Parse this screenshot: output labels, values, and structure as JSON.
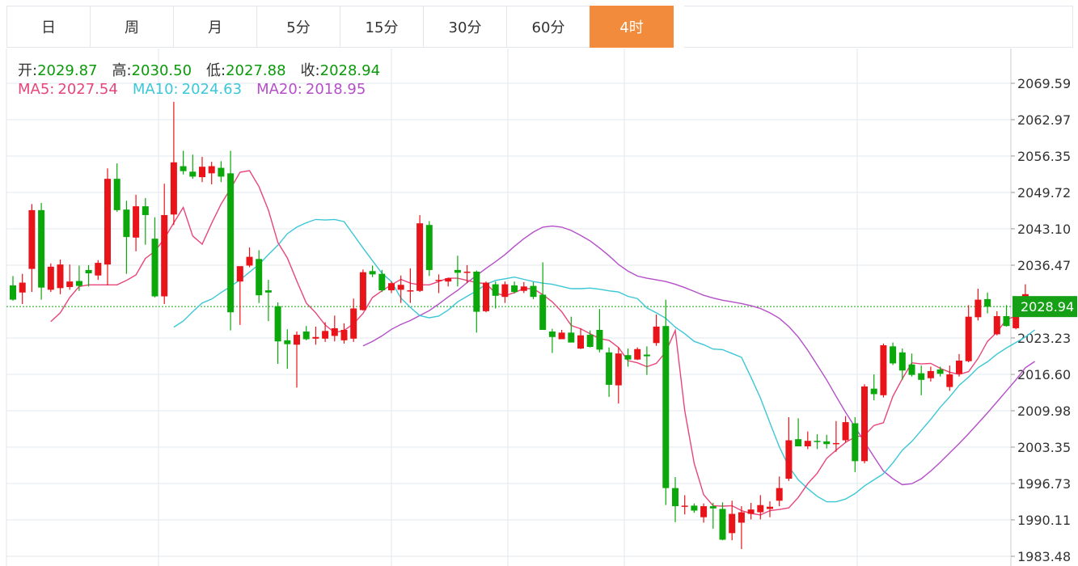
{
  "tabs": [
    "日",
    "周",
    "月",
    "5分",
    "15分",
    "30分",
    "60分",
    "4时"
  ],
  "active_tab": "4时",
  "ohlc": {
    "open_label": "开:",
    "open": "2029.87",
    "high_label": "高:",
    "high": "2030.50",
    "low_label": "低:",
    "low": "2027.88",
    "close_label": "收:",
    "close": "2028.94"
  },
  "ma": {
    "ma5_label": "MA5:",
    "ma5": "2027.54",
    "ma10_label": "MA10:",
    "ma10": "2024.63",
    "ma20_label": "MA20:",
    "ma20": "2018.95"
  },
  "colors": {
    "up": "#e8141a",
    "down": "#0aa80a",
    "ma5": "#e8457a",
    "ma10": "#3cc7d6",
    "ma20": "#b44fc8",
    "active_tab": "#f28c3c",
    "price_label_bg": "#16a016"
  },
  "chart_data": {
    "type": "candlestick",
    "y_ticks": [
      "2069.59",
      "2062.97",
      "2056.35",
      "2049.72",
      "2043.10",
      "2036.47",
      "2023.23",
      "2016.60",
      "2009.98",
      "2003.35",
      "1996.73",
      "1990.11",
      "1983.48"
    ],
    "ylim": [
      1983.48,
      2069.59
    ],
    "last_price_label": "2028.94",
    "last_price": 2028.94,
    "candles": [
      [
        2032.8,
        2034.5,
        2030.0,
        2030.2
      ],
      [
        2031.5,
        2034.9,
        2029.4,
        2033.3
      ],
      [
        2035.8,
        2047.6,
        2031.6,
        2046.5
      ],
      [
        2046.5,
        2047.8,
        2030.2,
        2032.4
      ],
      [
        2032.0,
        2036.8,
        2031.6,
        2036.2
      ],
      [
        2032.3,
        2037.5,
        2031.2,
        2036.6
      ],
      [
        2032.5,
        2036.6,
        2032.0,
        2033.5
      ],
      [
        2033.6,
        2036.4,
        2031.8,
        2032.7
      ],
      [
        2035.6,
        2036.5,
        2032.6,
        2035.0
      ],
      [
        2034.6,
        2037.4,
        2033.8,
        2036.9
      ],
      [
        2036.6,
        2054.1,
        2032.8,
        2052.2
      ],
      [
        2052.2,
        2055.0,
        2046.2,
        2046.5
      ],
      [
        2046.6,
        2048.2,
        2034.9,
        2041.6
      ],
      [
        2041.5,
        2049.3,
        2039.0,
        2047.2
      ],
      [
        2047.2,
        2048.7,
        2040.2,
        2045.6
      ],
      [
        2041.3,
        2045.2,
        2030.6,
        2030.8
      ],
      [
        2030.8,
        2051.3,
        2029.4,
        2045.6
      ],
      [
        2045.7,
        2066.2,
        2043.8,
        2055.2
      ],
      [
        2054.5,
        2057.3,
        2053.0,
        2053.6
      ],
      [
        2053.5,
        2056.6,
        2052.2,
        2052.6
      ],
      [
        2052.5,
        2056.2,
        2051.6,
        2054.4
      ],
      [
        2053.2,
        2055.3,
        2051.2,
        2054.5
      ],
      [
        2054.2,
        2055.4,
        2051.6,
        2052.6
      ],
      [
        2053.2,
        2057.3,
        2024.6,
        2027.9
      ],
      [
        2033.5,
        2036.2,
        2025.6,
        2036.3
      ],
      [
        2036.4,
        2039.7,
        2036.1,
        2038.0
      ],
      [
        2037.6,
        2039.2,
        2029.6,
        2031.0
      ],
      [
        2031.9,
        2033.8,
        2026.3,
        2031.5
      ],
      [
        2029.0,
        2029.7,
        2018.5,
        2022.6
      ],
      [
        2022.8,
        2024.8,
        2017.6,
        2022.1
      ],
      [
        2022.0,
        2024.4,
        2014.2,
        2023.8
      ],
      [
        2024.4,
        2025.4,
        2022.8,
        2023.0
      ],
      [
        2023.1,
        2025.3,
        2022.0,
        2023.4
      ],
      [
        2023.1,
        2026.1,
        2022.5,
        2024.5
      ],
      [
        2023.6,
        2027.3,
        2022.6,
        2025.0
      ],
      [
        2022.8,
        2025.9,
        2022.2,
        2024.7
      ],
      [
        2023.1,
        2030.4,
        2022.5,
        2028.6
      ],
      [
        2028.3,
        2035.7,
        2028.2,
        2035.2
      ],
      [
        2035.4,
        2036.4,
        2034.3,
        2034.8
      ],
      [
        2034.9,
        2035.6,
        2031.6,
        2031.9
      ],
      [
        2031.9,
        2033.5,
        2031.4,
        2033.2
      ],
      [
        2032.0,
        2034.6,
        2029.6,
        2032.9
      ],
      [
        2031.8,
        2035.9,
        2029.6,
        2031.9
      ],
      [
        2031.8,
        2045.6,
        2031.6,
        2044.1
      ],
      [
        2043.8,
        2044.5,
        2034.5,
        2035.6
      ],
      [
        2033.8,
        2034.8,
        2031.4,
        2033.8
      ],
      [
        2033.5,
        2034.2,
        2032.6,
        2034.1
      ],
      [
        2035.6,
        2038.2,
        2032.6,
        2035.1
      ],
      [
        2035.1,
        2036.5,
        2033.2,
        2035.3
      ],
      [
        2035.3,
        2035.5,
        2024.2,
        2028.0
      ],
      [
        2028.1,
        2033.5,
        2027.9,
        2033.3
      ],
      [
        2033.0,
        2033.5,
        2028.6,
        2030.9
      ],
      [
        2030.7,
        2033.5,
        2029.6,
        2033.0
      ],
      [
        2032.8,
        2033.5,
        2031.3,
        2031.6
      ],
      [
        2031.8,
        2033.4,
        2031.4,
        2032.6
      ],
      [
        2032.7,
        2033.4,
        2030.3,
        2030.7
      ],
      [
        2031.1,
        2037.0,
        2024.7,
        2024.7
      ],
      [
        2024.4,
        2024.9,
        2020.5,
        2023.4
      ],
      [
        2023.0,
        2024.7,
        2023.0,
        2024.2
      ],
      [
        2024.2,
        2027.1,
        2022.4,
        2022.4
      ],
      [
        2021.3,
        2025.0,
        2021.2,
        2023.7
      ],
      [
        2023.8,
        2024.6,
        2021.5,
        2021.6
      ],
      [
        2024.7,
        2028.5,
        2020.6,
        2021.1
      ],
      [
        2020.6,
        2021.5,
        2012.5,
        2014.7
      ],
      [
        2014.6,
        2021.5,
        2011.3,
        2020.4
      ],
      [
        2020.1,
        2021.3,
        2018.0,
        2019.3
      ],
      [
        2019.3,
        2021.5,
        2019.2,
        2021.2
      ],
      [
        2020.2,
        2021.7,
        2016.5,
        2019.9
      ],
      [
        2022.3,
        2027.5,
        2021.8,
        2025.3
      ],
      [
        2025.4,
        2030.2,
        1992.8,
        1995.9
      ],
      [
        1995.9,
        1997.9,
        1989.7,
        1992.6
      ],
      [
        1992.6,
        1994.6,
        1991.1,
        1992.7
      ],
      [
        1992.7,
        1993.1,
        1991.4,
        1991.8
      ],
      [
        1990.6,
        1993.1,
        1989.6,
        1992.6
      ],
      [
        1992.6,
        1993.2,
        1988.5,
        1992.2
      ],
      [
        1992.1,
        1993.3,
        1986.4,
        1986.5
      ],
      [
        1987.7,
        1993.6,
        1986.4,
        1991.2
      ],
      [
        1989.6,
        1992.6,
        1984.8,
        1991.5
      ],
      [
        1991.2,
        1993.2,
        1990.2,
        1992.0
      ],
      [
        1991.5,
        1994.6,
        1990.2,
        1992.8
      ],
      [
        1992.1,
        1993.5,
        1990.6,
        1992.5
      ],
      [
        1993.6,
        1998.0,
        1992.6,
        1995.9
      ],
      [
        1997.6,
        2008.8,
        1997.2,
        2004.6
      ],
      [
        2004.8,
        2008.6,
        2003.6,
        2003.5
      ],
      [
        2003.5,
        2006.2,
        2003.0,
        2004.5
      ],
      [
        2004.5,
        2005.7,
        2003.0,
        2004.3
      ],
      [
        2004.4,
        2005.6,
        2003.1,
        2003.9
      ],
      [
        2004.1,
        2008.1,
        2002.5,
        2004.1
      ],
      [
        2004.6,
        2009.0,
        2004.2,
        2007.9
      ],
      [
        2007.7,
        2008.8,
        1998.8,
        2000.8
      ],
      [
        2000.8,
        2014.8,
        2000.4,
        2014.4
      ],
      [
        2014.0,
        2016.6,
        2011.9,
        2013.0
      ],
      [
        2012.8,
        2022.2,
        2012.4,
        2021.9
      ],
      [
        2021.7,
        2022.4,
        2018.3,
        2018.6
      ],
      [
        2020.6,
        2021.3,
        2015.6,
        2017.3
      ],
      [
        2018.4,
        2020.4,
        2016.2,
        2016.5
      ],
      [
        2016.8,
        2018.2,
        2012.8,
        2015.6
      ],
      [
        2015.9,
        2018.0,
        2015.3,
        2017.2
      ],
      [
        2017.5,
        2018.0,
        2016.2,
        2016.7
      ],
      [
        2014.3,
        2018.2,
        2013.6,
        2016.6
      ],
      [
        2016.7,
        2020.3,
        2016.2,
        2019.1
      ],
      [
        2019.0,
        2029.2,
        2018.8,
        2027.1
      ],
      [
        2027.0,
        2032.2,
        2026.4,
        2030.2
      ],
      [
        2030.3,
        2031.5,
        2027.7,
        2028.9
      ],
      [
        2023.9,
        2028.1,
        2023.7,
        2027.2
      ],
      [
        2027.2,
        2029.2,
        2025.3,
        2025.4
      ],
      [
        2025.0,
        2029.8,
        2024.8,
        2029.1
      ],
      [
        2028.9,
        2033.0,
        2027.8,
        2031.2
      ],
      [
        2029.87,
        2030.5,
        2027.88,
        2028.94
      ]
    ],
    "ma5": [
      2026.2,
      2027.8,
      2030.6,
      2032.6,
      2032.9,
      2032.9,
      2032.9,
      2032.9,
      2033.7,
      2034.7,
      2037.7,
      2039.0,
      2041.3,
      2044.2,
      2047.0,
      2041.8,
      2040.3,
      2044.1,
      2047.6,
      2050.4,
      2053.4,
      2053.7,
      2050.8,
      2046.5,
      2040.6,
      2037.8,
      2033.6,
      2029.6,
      2027.8,
      2025.6,
      2024.2,
      2024.6,
      2025.8,
      2027.7,
      2030.6,
      2031.8,
      2032.9,
      2033.9,
      2033.2,
      2032.9,
      2032.9,
      2033.5,
      2034.1,
      2034.1,
      2033.7,
      2033.3,
      2033.1,
      2031.4,
      2030.9,
      2031.5,
      2032.2,
      2032.2,
      2031.1,
      2029.8,
      2028.0,
      2025.5,
      2024.9,
      2024.0,
      2023.1,
      2022.8,
      2021.5,
      2019.1,
      2018.7,
      2018.0,
      2018.6,
      2020.7,
      2024.6,
      2010.0,
      2000.4,
      1994.7,
      1992.7,
      1992.6,
      1992.7,
      1991.8,
      1991.3,
      1991.0,
      1991.8,
      1992.0,
      1992.3,
      1994.2,
      1996.7,
      1998.6,
      2001.3,
      2002.8,
      2004.2,
      2005.2,
      2005.5,
      2007.3,
      2007.8,
      2012.6,
      2015.8,
      2018.7,
      2018.5,
      2018.6,
      2017.7,
      2017.0,
      2016.6,
      2017.1,
      2019.5,
      2022.6,
      2024.3,
      2026.6,
      2027.2,
      2027.6,
      2027.5
    ],
    "ma10": [
      2025.2,
      2026.3,
      2028.0,
      2029.6,
      2030.3,
      2031.5,
      2032.6,
      2033.8,
      2035.2,
      2036.6,
      2038.4,
      2040.1,
      2042.2,
      2043.4,
      2044.2,
      2044.8,
      2044.7,
      2044.8,
      2044.4,
      2042.0,
      2039.6,
      2037.3,
      2035.0,
      2033.5,
      2030.5,
      2028.8,
      2027.3,
      2026.9,
      2027.2,
      2028.3,
      2029.8,
      2030.8,
      2031.8,
      2033.0,
      2033.7,
      2034.0,
      2034.3,
      2033.9,
      2033.5,
      2033.2,
      2033.0,
      2032.6,
      2032.2,
      2032.2,
      2032.3,
      2032.1,
      2031.8,
      2031.6,
      2030.8,
      2030.4,
      2028.7,
      2027.8,
      2026.8,
      2025.2,
      2024.0,
      2022.6,
      2022.0,
      2021.2,
      2021.1,
      2020.4,
      2019.7,
      2016.1,
      2012.3,
      2007.8,
      2003.4,
      1999.8,
      1997.4,
      1995.8,
      1994.4,
      1993.4,
      1993.4,
      1993.9,
      1994.9,
      1996.3,
      1997.4,
      1998.5,
      2000.5,
      2002.8,
      2004.4,
      2006.4,
      2008.4,
      2010.6,
      2012.5,
      2014.6,
      2016.1,
      2017.8,
      2018.9,
      2020.3,
      2021.4,
      2022.4,
      2023.4,
      2024.7
    ],
    "ma20": [
      2021.8,
      2022.6,
      2023.6,
      2024.8,
      2025.7,
      2026.4,
      2027.3,
      2028.2,
      2029.4,
      2030.7,
      2031.9,
      2033.3,
      2034.6,
      2035.9,
      2037.1,
      2038.4,
      2039.9,
      2041.3,
      2042.5,
      2043.4,
      2043.6,
      2043.4,
      2042.8,
      2041.9,
      2040.9,
      2039.6,
      2038.2,
      2036.6,
      2035.4,
      2034.5,
      2034.1,
      2033.8,
      2033.5,
      2033.0,
      2032.4,
      2031.7,
      2031.0,
      2030.5,
      2030.1,
      2029.8,
      2029.5,
      2029.1,
      2028.6,
      2027.8,
      2026.8,
      2025.3,
      2023.4,
      2021.0,
      2018.3,
      2015.6,
      2012.6,
      2009.7,
      2007.0,
      2004.3,
      2001.6,
      1999.0,
      1997.6,
      1996.5,
      1996.7,
      1997.6,
      1999.0,
      2000.6,
      2002.3,
      2004.0,
      2005.8,
      2007.7,
      2009.6,
      2011.6,
      2013.6,
      2015.6,
      2017.8,
      2018.95
    ]
  }
}
